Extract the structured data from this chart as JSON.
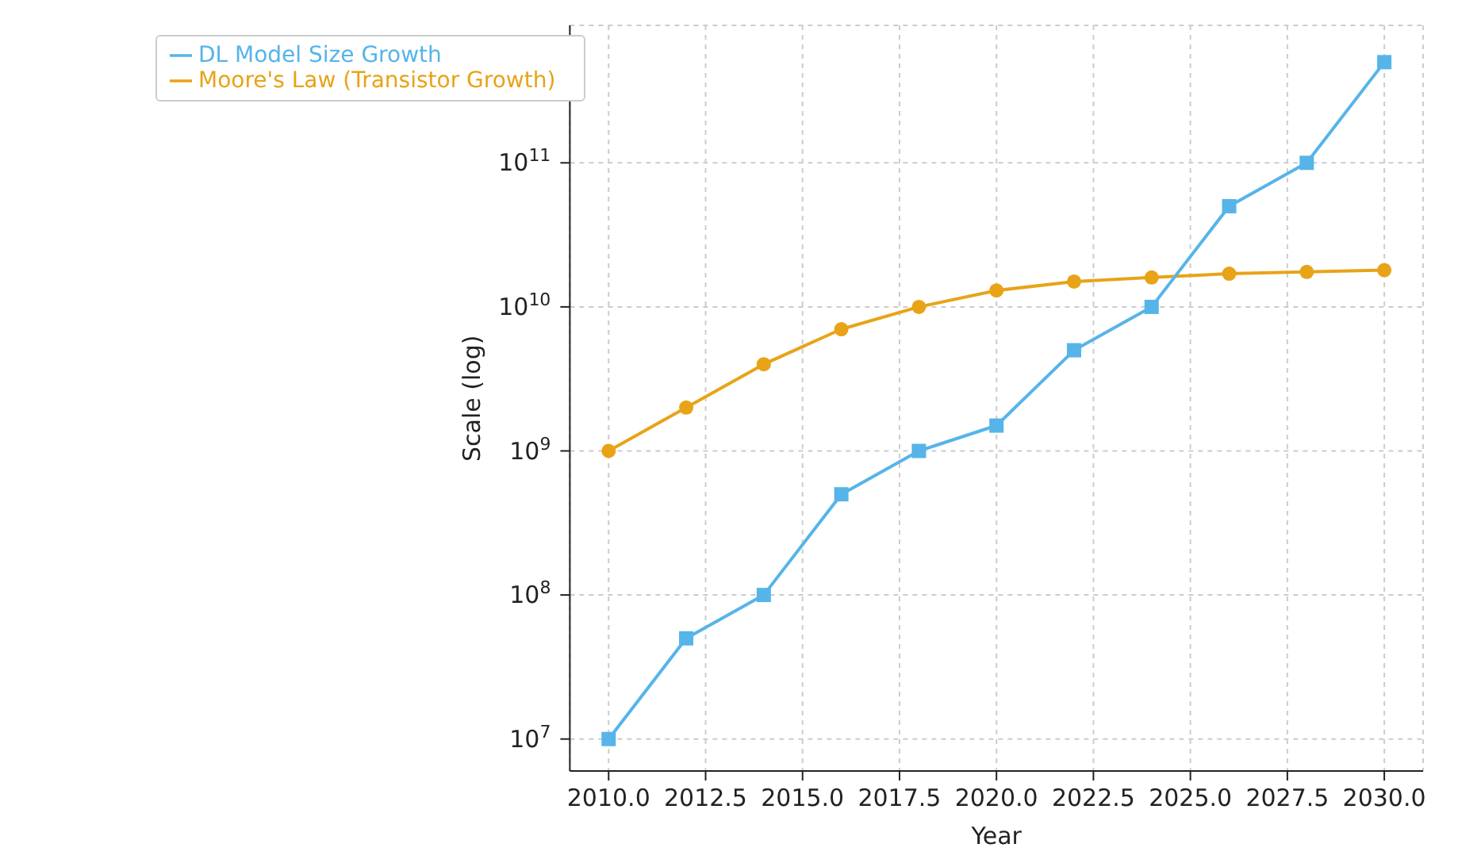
{
  "chart_data": {
    "type": "line",
    "xlabel": "Year",
    "ylabel": "Scale (log)",
    "x": [
      2010,
      2012,
      2014,
      2016,
      2018,
      2020,
      2022,
      2024,
      2026,
      2028,
      2030
    ],
    "series": [
      {
        "name": "Moore's Law (Transistor Growth)",
        "color": "#e8a317",
        "marker": "circle",
        "values": [
          1000000000.0,
          2000000000.0,
          4000000000.0,
          7000000000.0,
          10000000000.0,
          13000000000.0,
          15000000000.0,
          16000000000.0,
          17000000000.0,
          17500000000.0,
          18000000000.0
        ]
      },
      {
        "name": "DL Model Size Growth",
        "color": "#56b4e9",
        "marker": "square",
        "values": [
          10000000.0,
          50000000.0,
          100000000.0,
          500000000.0,
          1000000000.0,
          1500000000.0,
          5000000000.0,
          10000000000.0,
          50000000000.0,
          100000000000.0,
          500000000000.0
        ]
      }
    ],
    "xlim": [
      2009,
      2031
    ],
    "xticks": [
      {
        "value": 2010,
        "label": "2010.0"
      },
      {
        "value": 2012.5,
        "label": "2012.5"
      },
      {
        "value": 2015,
        "label": "2015.0"
      },
      {
        "value": 2017.5,
        "label": "2017.5"
      },
      {
        "value": 2020,
        "label": "2020.0"
      },
      {
        "value": 2022.5,
        "label": "2022.5"
      },
      {
        "value": 2025,
        "label": "2025.0"
      },
      {
        "value": 2027.5,
        "label": "2027.5"
      },
      {
        "value": 2030,
        "label": "2030.0"
      }
    ],
    "ylim": [
      6000000.0,
      900000000000.0
    ],
    "yticks": [
      {
        "value": 10000000.0,
        "label": "10$^{7}$"
      },
      {
        "value": 100000000.0,
        "label": "10$^{8}$"
      },
      {
        "value": 1000000000.0,
        "label": "10$^{9}$"
      },
      {
        "value": 10000000000.0,
        "label": "10$^{10}$"
      },
      {
        "value": 100000000000.0,
        "label": "10$^{11}$"
      }
    ],
    "log": "y",
    "grid": true,
    "legend": "top left",
    "line_style": "solid"
  }
}
